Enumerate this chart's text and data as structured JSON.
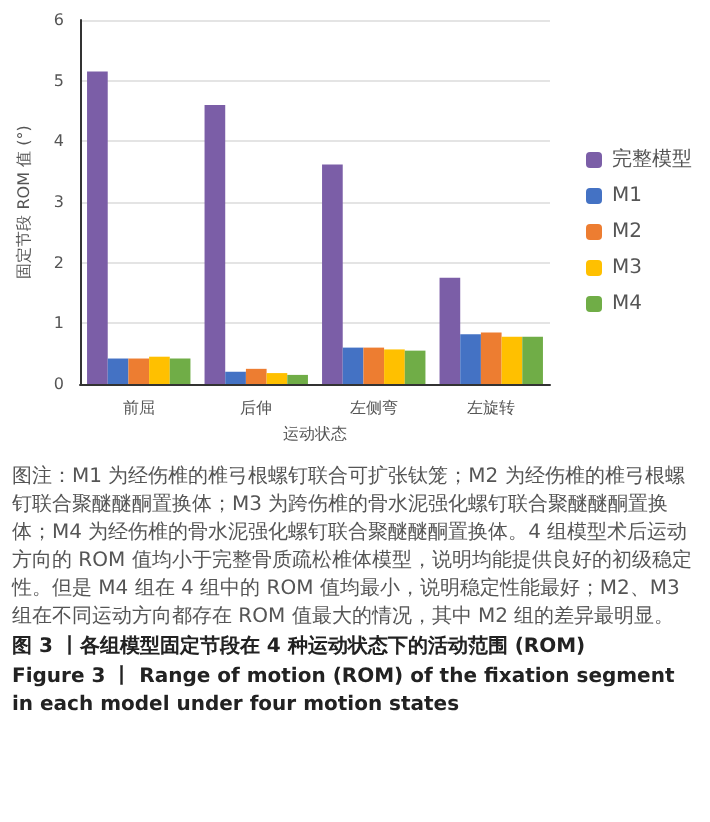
{
  "chart_data": {
    "type": "bar",
    "xlabel": "运动状态",
    "ylabel": "固定节段 ROM 值 (°)",
    "categories": [
      "前屈",
      "后伸",
      "左侧弯",
      "左旋转"
    ],
    "series": [
      {
        "name": "完整模型",
        "color": "#7b5ea7",
        "values": [
          5.15,
          4.6,
          3.62,
          1.75
        ]
      },
      {
        "name": "M1",
        "color": "#4472c4",
        "values": [
          0.42,
          0.2,
          0.6,
          0.82
        ]
      },
      {
        "name": "M2",
        "color": "#ed7d31",
        "values": [
          0.42,
          0.25,
          0.6,
          0.85
        ]
      },
      {
        "name": "M3",
        "color": "#ffc000",
        "values": [
          0.45,
          0.18,
          0.57,
          0.78
        ]
      },
      {
        "name": "M4",
        "color": "#70ad47",
        "values": [
          0.42,
          0.15,
          0.55,
          0.78
        ]
      }
    ],
    "ylim": [
      0,
      6
    ],
    "yticks": [
      0,
      1,
      2,
      3,
      4,
      5,
      6
    ],
    "grid": "y",
    "legend": "right",
    "annotations": [
      "图注：M1 为经伤椎的椎弓根螺钉联合可扩张钛笼；M2 为经伤椎的椎弓根螺钉联合聚醚醚酮置换体；M3 为跨伤椎的骨水泥强化螺钉联合聚醚醚酮置换体；M4 为经伤椎的骨水泥强化螺钉联合聚醚醚酮置换体。4 组模型术后运动方向的 ROM 值均小于完整骨质疏松椎体模型，说明均能提供良好的初级稳定性。但是 M4 组在 4 组中的 ROM 值均最小，说明稳定性能最好；M2、M3 组在不同运动方向都存在 ROM 值最大的情况，其中 M2 组的差异最明显。",
      "图 3 丨各组模型固定节段在 4 种运动状态下的活动范围 (ROM)",
      "Figure 3 丨 Range of motion (ROM) of the fixation segment in each model under four motion states"
    ]
  }
}
